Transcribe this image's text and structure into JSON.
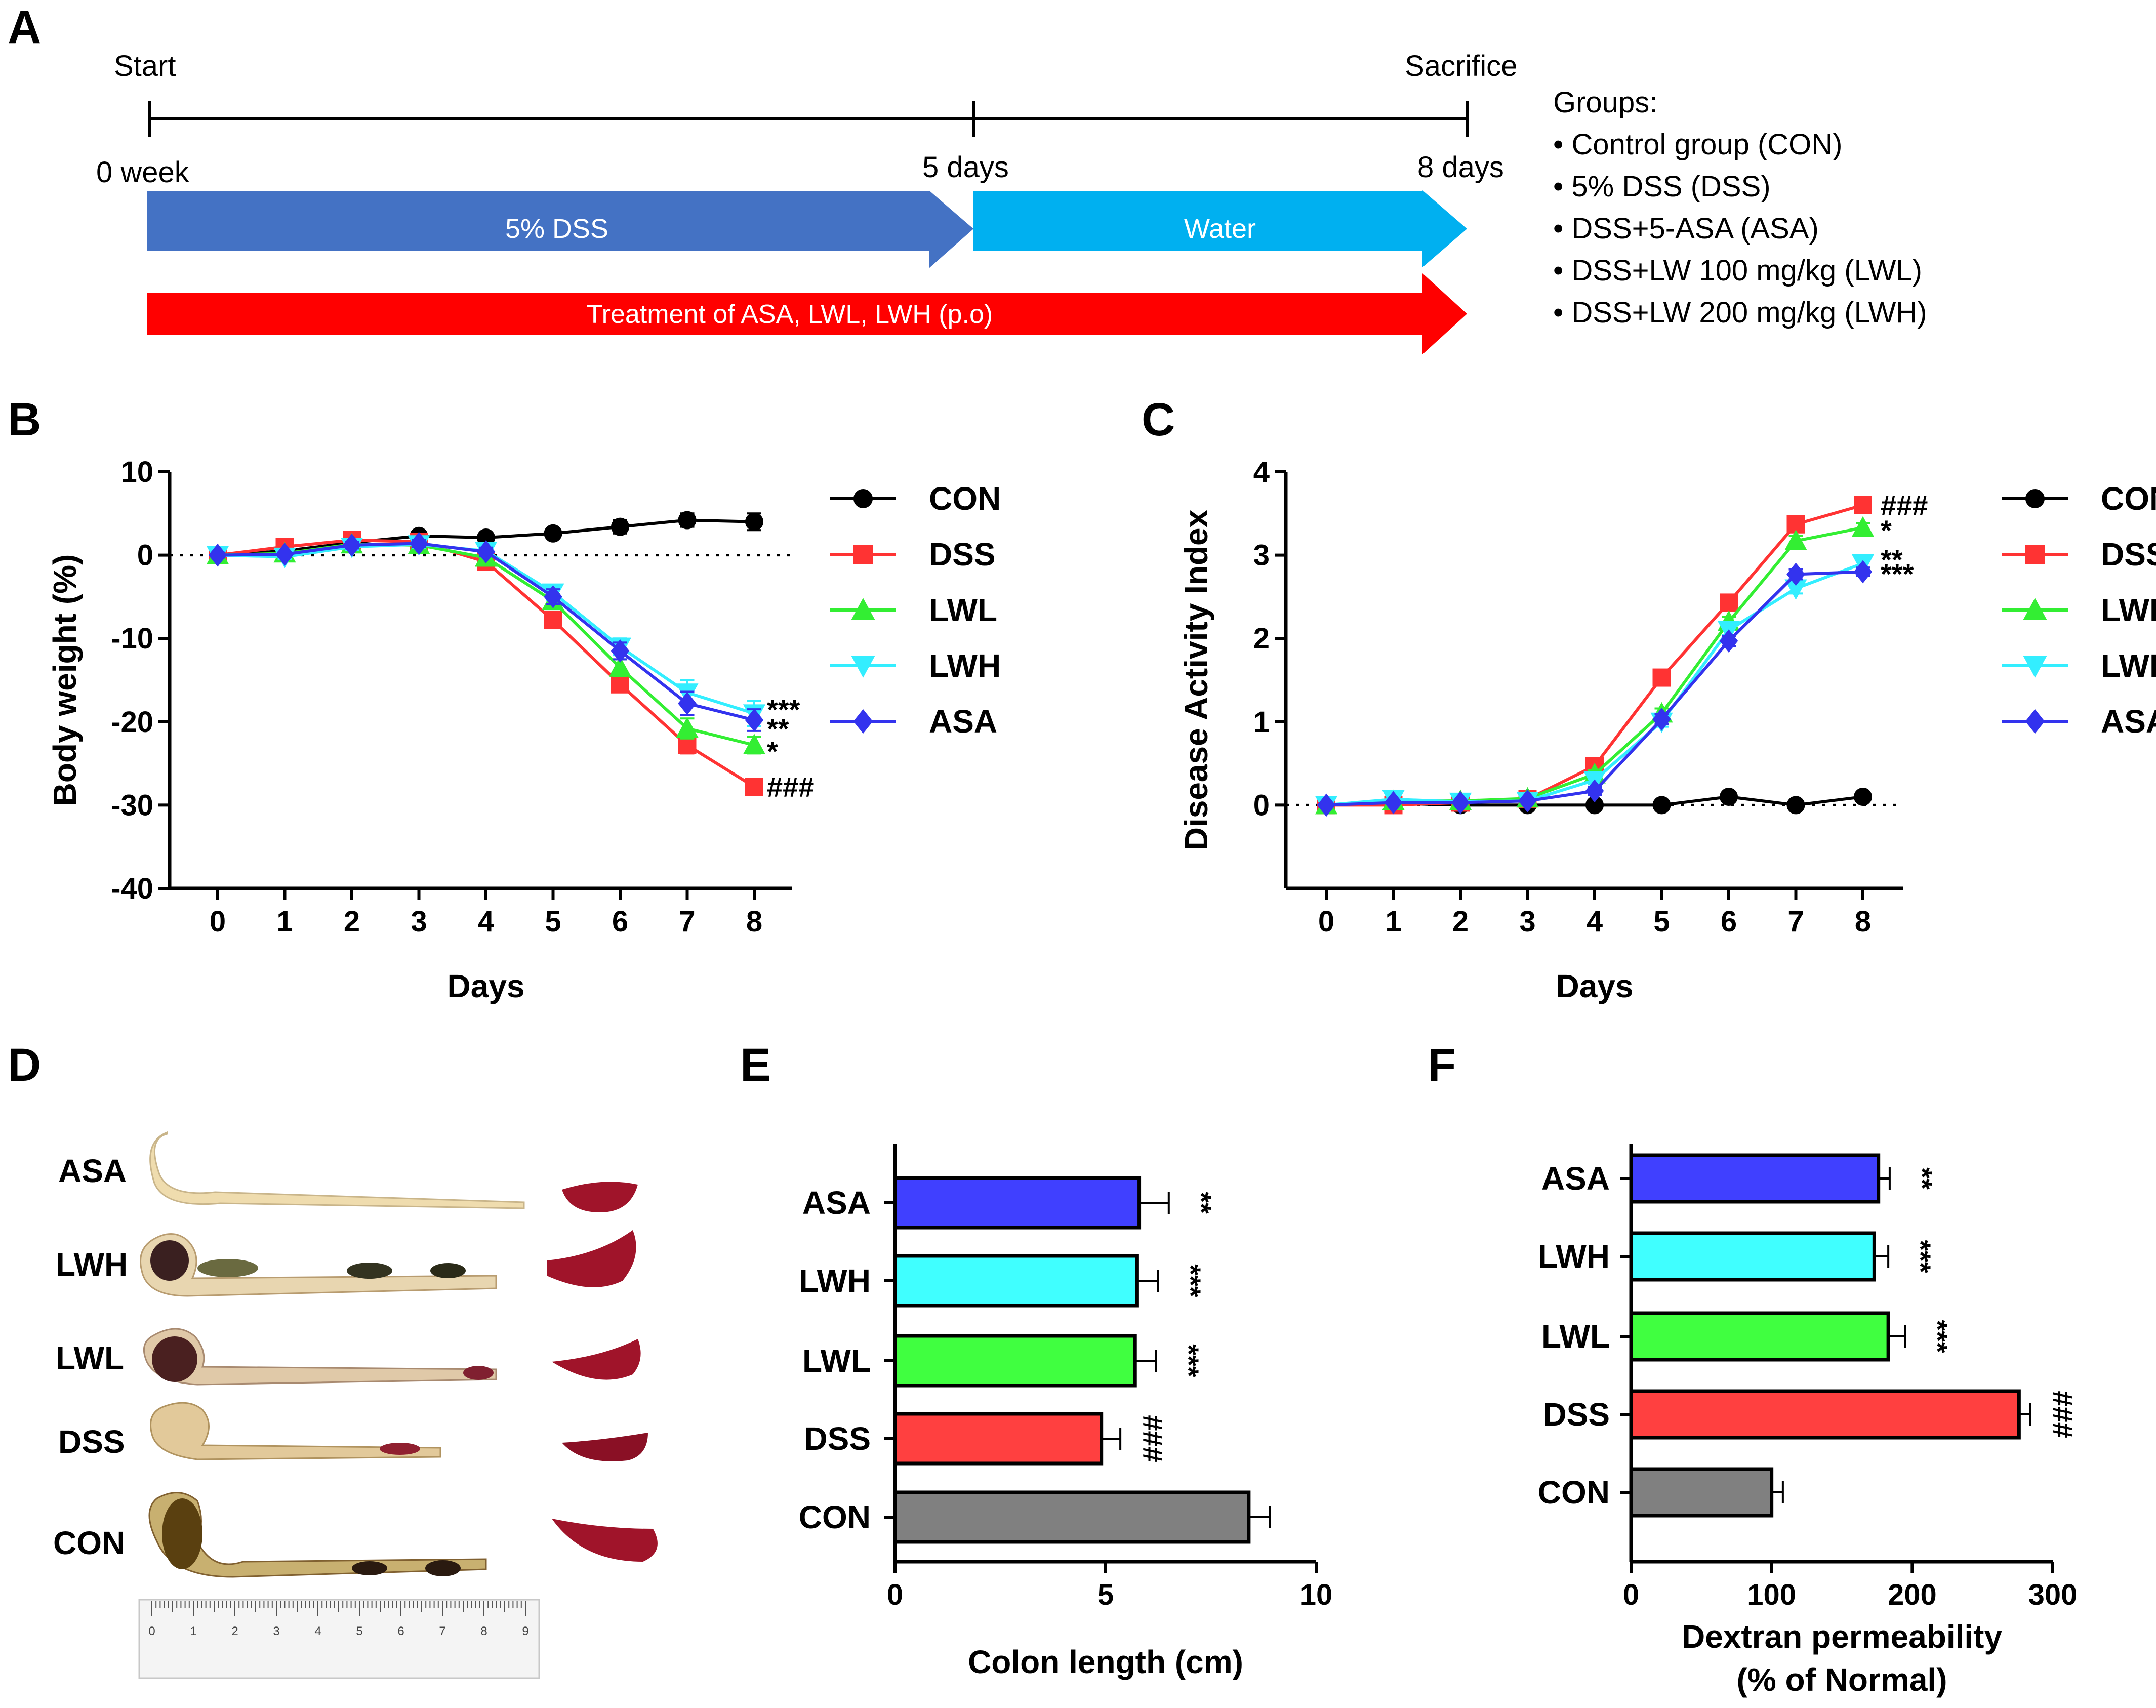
{
  "panels": {
    "A": "A",
    "B": "B",
    "C": "C",
    "D": "D",
    "E": "E",
    "F": "F"
  },
  "timeline": {
    "start_label": "Start",
    "sacrifice_label": "Sacrifice",
    "tick0": "0 week",
    "tick5": "5 days",
    "tick8": "8 days",
    "bar_dss": "5% DSS",
    "bar_water": "Water",
    "bar_treatment": "Treatment of ASA, LWL, LWH (p.o)",
    "groups_title": "Groups:",
    "groups": [
      "• Control group (CON)",
      "• 5% DSS (DSS)",
      "• DSS+5-ASA (ASA)",
      "• DSS+LW 100 mg/kg (LWL)",
      "• DSS+LW 200 mg/kg (LWH)"
    ],
    "colors": {
      "dss": "#4472C4",
      "water": "#00B0F0",
      "treatment": "#FF0000"
    }
  },
  "colors": {
    "CON": "#000000",
    "DSS": "#FF3333",
    "LWL": "#33EE33",
    "LWH": "#33EEFF",
    "ASA": "#3333EE",
    "CON_bar": "#808080",
    "DSS_bar": "#FF4040",
    "LWL_bar": "#40FF40",
    "LWH_bar": "#40FFFF",
    "ASA_bar": "#4040FF"
  },
  "chart_data": [
    {
      "id": "B",
      "type": "line",
      "xlabel": "Days",
      "ylabel": "Body weight (%)",
      "x": [
        0,
        1,
        2,
        3,
        4,
        5,
        6,
        7,
        8
      ],
      "ylim": [
        -40,
        10
      ],
      "yticks": [
        10,
        0,
        -10,
        -20,
        -30,
        -40
      ],
      "xticks": [
        0,
        1,
        2,
        3,
        4,
        5,
        6,
        7,
        8
      ],
      "series": [
        {
          "name": "CON",
          "marker": "circle",
          "values": [
            0,
            0.5,
            1.5,
            2.3,
            2.1,
            2.6,
            3.4,
            4.2,
            4.0
          ],
          "errors": [
            0.3,
            0.3,
            0.3,
            0.5,
            0.4,
            0.4,
            0.8,
            0.8,
            1.0
          ]
        },
        {
          "name": "DSS",
          "marker": "square",
          "values": [
            0,
            1.0,
            1.8,
            1.6,
            -0.8,
            -7.8,
            -15.5,
            -22.8,
            -27.8
          ],
          "errors": [
            0.3,
            0.3,
            0.4,
            0.4,
            0.5,
            0.8,
            0.8,
            1.0,
            0.8
          ]
        },
        {
          "name": "LWL",
          "marker": "triangle-up",
          "values": [
            0,
            0.2,
            1.3,
            1.2,
            -0.3,
            -5.5,
            -13.5,
            -20.8,
            -22.8
          ],
          "errors": [
            0.3,
            0.3,
            0.4,
            0.4,
            0.5,
            0.8,
            1.0,
            1.2,
            1.0
          ]
        },
        {
          "name": "LWH",
          "marker": "triangle-down",
          "values": [
            0,
            -0.2,
            1.0,
            1.3,
            0.5,
            -4.5,
            -11.0,
            -16.5,
            -19.0
          ],
          "errors": [
            0.3,
            0.3,
            0.4,
            0.4,
            0.5,
            0.9,
            1.0,
            1.5,
            1.5
          ]
        },
        {
          "name": "ASA",
          "marker": "diamond",
          "values": [
            0,
            0.1,
            1.2,
            1.4,
            0.4,
            -5.0,
            -11.5,
            -17.8,
            -19.8
          ],
          "errors": [
            0.3,
            0.3,
            0.4,
            0.4,
            0.5,
            0.9,
            1.0,
            1.4,
            1.3
          ]
        }
      ],
      "annotations": [
        {
          "text": "***",
          "y": -18.5
        },
        {
          "text": "**",
          "y": -20.8
        },
        {
          "text": "*",
          "y": -23.5
        },
        {
          "text": "###",
          "y": -27.8
        }
      ],
      "legend_position": "right"
    },
    {
      "id": "C",
      "type": "line",
      "xlabel": "Days",
      "ylabel": "Disease Activity Index",
      "x": [
        0,
        1,
        2,
        3,
        4,
        5,
        6,
        7,
        8
      ],
      "ylim": [
        -1,
        4
      ],
      "yticks": [
        4,
        3,
        2,
        1,
        0
      ],
      "xticks": [
        0,
        1,
        2,
        3,
        4,
        5,
        6,
        7,
        8
      ],
      "series": [
        {
          "name": "CON",
          "marker": "circle",
          "values": [
            0,
            0.02,
            0,
            0,
            0,
            0,
            0.1,
            0,
            0.1
          ],
          "errors": [
            0,
            0,
            0,
            0,
            0,
            0,
            0,
            0,
            0
          ]
        },
        {
          "name": "DSS",
          "marker": "square",
          "values": [
            0,
            0,
            0.03,
            0.07,
            0.47,
            1.53,
            2.43,
            3.37,
            3.6
          ],
          "errors": [
            0,
            0,
            0.02,
            0.02,
            0.05,
            0.06,
            0.06,
            0.06,
            0.05
          ]
        },
        {
          "name": "LWL",
          "marker": "triangle-up",
          "values": [
            0,
            0.05,
            0.05,
            0.08,
            0.37,
            1.1,
            2.2,
            3.17,
            3.33
          ],
          "errors": [
            0,
            0.02,
            0.02,
            0.02,
            0.05,
            0.06,
            0.06,
            0.06,
            0.05
          ]
        },
        {
          "name": "LWH",
          "marker": "triangle-down",
          "values": [
            0,
            0.07,
            0.04,
            0.05,
            0.3,
            1.0,
            2.1,
            2.6,
            2.9
          ],
          "errors": [
            0,
            0.02,
            0.02,
            0.02,
            0.05,
            0.06,
            0.06,
            0.06,
            0.05
          ]
        },
        {
          "name": "ASA",
          "marker": "diamond",
          "values": [
            0,
            0.03,
            0.03,
            0.05,
            0.17,
            1.03,
            1.97,
            2.77,
            2.8
          ],
          "errors": [
            0,
            0.02,
            0.02,
            0.02,
            0.05,
            0.06,
            0.06,
            0.06,
            0.05
          ]
        }
      ],
      "annotations": [
        {
          "text": "###",
          "y": 3.6
        },
        {
          "text": "*",
          "y": 3.3
        },
        {
          "text": "**",
          "y": 2.95
        },
        {
          "text": "***",
          "y": 2.78
        }
      ],
      "legend_position": "right"
    },
    {
      "id": "E",
      "type": "bar",
      "orientation": "horizontal",
      "xlabel": "Colon length (cm)",
      "categories": [
        "ASA",
        "LWH",
        "LWL",
        "DSS",
        "CON"
      ],
      "values": [
        5.8,
        5.75,
        5.7,
        4.9,
        8.4
      ],
      "errors": [
        0.7,
        0.5,
        0.5,
        0.45,
        0.5
      ],
      "significance": [
        "**",
        "***",
        "***",
        "###",
        ""
      ],
      "xlim": [
        0,
        10
      ],
      "xticks": [
        0,
        5,
        10
      ]
    },
    {
      "id": "F",
      "type": "bar",
      "orientation": "horizontal",
      "xlabel": "Dextran permeability",
      "xlabel2": "(% of Normal)",
      "categories": [
        "ASA",
        "LWH",
        "LWL",
        "DSS",
        "CON"
      ],
      "values": [
        176,
        173,
        183,
        276,
        100
      ],
      "errors": [
        8,
        10,
        12,
        8,
        8
      ],
      "significance": [
        "**",
        "***",
        "***",
        "###",
        ""
      ],
      "xlim": [
        0,
        300
      ],
      "xticks": [
        0,
        100,
        200,
        300
      ]
    }
  ],
  "panel_D": {
    "labels": [
      "ASA",
      "LWH",
      "LWL",
      "DSS",
      "CON"
    ],
    "ruler_numbers": [
      "0",
      "1",
      "2",
      "3",
      "4",
      "5",
      "6",
      "7",
      "8",
      "9"
    ]
  }
}
